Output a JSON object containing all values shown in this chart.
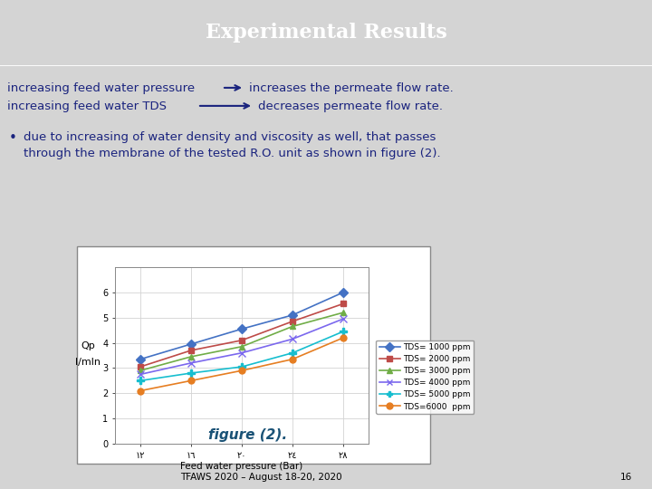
{
  "title": "Experimental Results",
  "header_bg": "#1e3a6e",
  "slide_bg": "#d4d4d4",
  "inner_bg": "#c8c8c8",
  "line1_left": "increasing feed water pressure",
  "line1_arrow": "→",
  "line1_right": "increases the permeate flow rate.",
  "line2_left": "increasing feed water TDS",
  "line2_arrow": "——→",
  "line2_right": "decreases permeate flow rate.",
  "bullet_text_1": "due to increasing of water density and viscosity as well, that passes",
  "bullet_text_2": "through the membrane of the tested R.O. unit as shown in figure (2).",
  "xlabel": "Feed water pressure (Bar)",
  "ylabel_1": "Qp",
  "ylabel_2": "l/mln",
  "fig_caption": "figure (2).",
  "footer_text": "TFAWS 2020 – August 18-20, 2020",
  "footer_page": "16",
  "x_values": [
    12,
    16,
    20,
    24,
    28
  ],
  "x_tick_labels": [
    "١٢",
    "١٦",
    "٢٠",
    "٢٤",
    "٢٨"
  ],
  "series": [
    {
      "label": "TDS= 1000 ppm",
      "color": "#4472C4",
      "marker": "D",
      "values": [
        3.35,
        3.95,
        4.55,
        5.1,
        6.0
      ]
    },
    {
      "label": "TDS= 2000 ppm",
      "color": "#BE4B48",
      "marker": "s",
      "values": [
        3.05,
        3.7,
        4.1,
        4.85,
        5.55
      ]
    },
    {
      "label": "TDS= 3000 ppm",
      "color": "#70AD47",
      "marker": "^",
      "values": [
        2.9,
        3.45,
        3.85,
        4.65,
        5.2
      ]
    },
    {
      "label": "TDS= 4000 ppm",
      "color": "#7B68EE",
      "marker": "x",
      "values": [
        2.75,
        3.2,
        3.6,
        4.15,
        4.95
      ]
    },
    {
      "label": "TDS= 5000 ppm",
      "color": "#17BECF",
      "marker": "P",
      "values": [
        2.5,
        2.8,
        3.05,
        3.6,
        4.45
      ]
    },
    {
      "label": "TDS=6000  ppm",
      "color": "#E67E22",
      "marker": "o",
      "values": [
        2.1,
        2.5,
        2.9,
        3.35,
        4.2
      ]
    }
  ],
  "ylim": [
    0,
    7
  ],
  "yticks": [
    0,
    1,
    2,
    3,
    4,
    5,
    6
  ],
  "text_color": "#1a237e",
  "chart_border_color": "#888888"
}
